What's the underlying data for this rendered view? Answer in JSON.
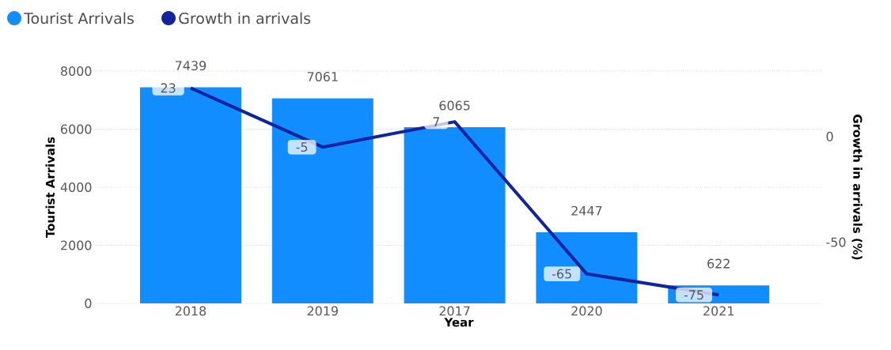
{
  "chart_data": {
    "type": "bar",
    "xlabel": "Year",
    "ylabel": "Tourist Arrivals",
    "y2label": "Growth in arrivals (%)",
    "categories": [
      "2018",
      "2019",
      "2017",
      "2020",
      "2021"
    ],
    "series": [
      {
        "name": "Tourist Arrivals",
        "color": "#118dff",
        "values": [
          7439,
          7061,
          6065,
          2447,
          622
        ]
      },
      {
        "name": "Growth in arrivals",
        "type": "line",
        "axis": "y2",
        "color": "#12239e",
        "values": [
          23,
          -5,
          7,
          -65,
          -75
        ]
      }
    ],
    "ylim": [
      0,
      8000
    ],
    "yticks": [
      0,
      2000,
      4000,
      6000,
      8000
    ],
    "y2lim": [
      -79,
      31
    ],
    "y2ticks": [
      -50,
      0
    ],
    "data_labels": true,
    "grid": "y",
    "legend": "top left",
    "marker": "none",
    "line_style": "solid"
  }
}
